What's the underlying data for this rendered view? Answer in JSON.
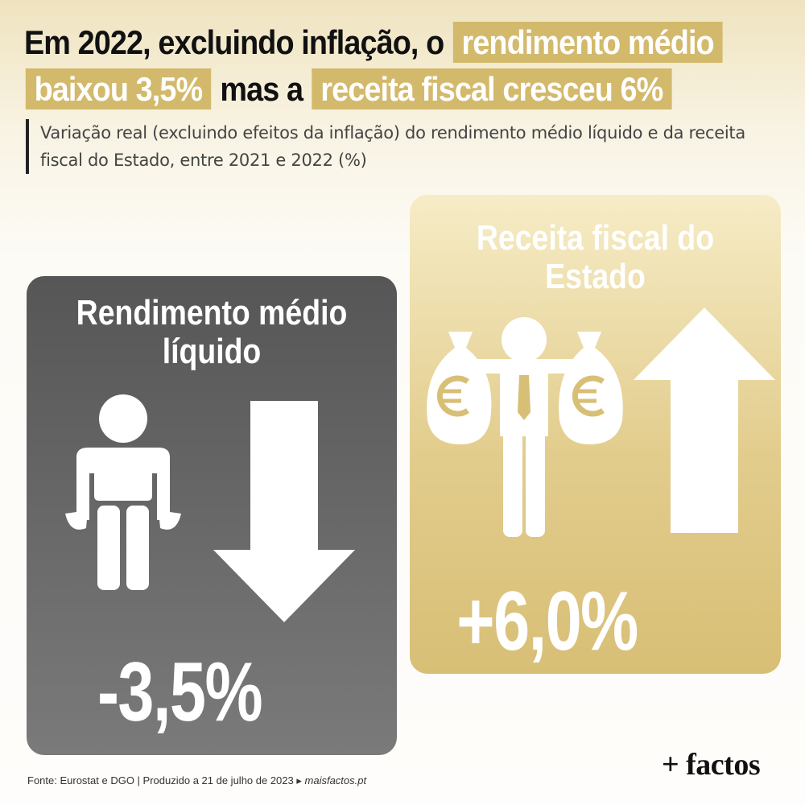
{
  "title": {
    "line1_plain": "Em 2022, excluindo inflação, o",
    "line1_highlight": "rendimento médio",
    "line2_highlight_a": "baixou 3,5%",
    "line2_plain": "mas a",
    "line2_highlight_b": "receita fiscal cresceu 6%"
  },
  "subtitle": "Variação real (excluindo efeitos da inflação) do rendimento médio líquido e da receita fiscal do Estado, entre 2021 e 2022 (%)",
  "chart_data": {
    "type": "bar",
    "categories": [
      "Rendimento médio líquido",
      "Receita fiscal do Estado"
    ],
    "values": [
      -3.5,
      6.0
    ],
    "value_labels": [
      "-3,5%",
      "+6,0%"
    ],
    "title": "Em 2022, excluindo inflação, o rendimento médio baixou 3,5% mas a receita fiscal cresceu 6%",
    "xlabel": "",
    "ylabel": "",
    "colors": [
      "#616161",
      "#d8bf76"
    ]
  },
  "panels": {
    "income": {
      "label_line1": "Rendimento médio",
      "label_line2": "líquido",
      "value": "-3,5%",
      "icons": [
        "empty-pockets-person-icon",
        "arrow-down-icon"
      ]
    },
    "revenue": {
      "label": "Receita fiscal do Estado",
      "value": "+6,0%",
      "icons": [
        "person-money-bags-icon",
        "arrow-up-icon"
      ]
    }
  },
  "footer": {
    "source": "Fonte: Eurostat e DGO | Produzido a 21 de julho de 2023 ▸",
    "site": "maisfactos.pt"
  },
  "logo": "+ factos"
}
